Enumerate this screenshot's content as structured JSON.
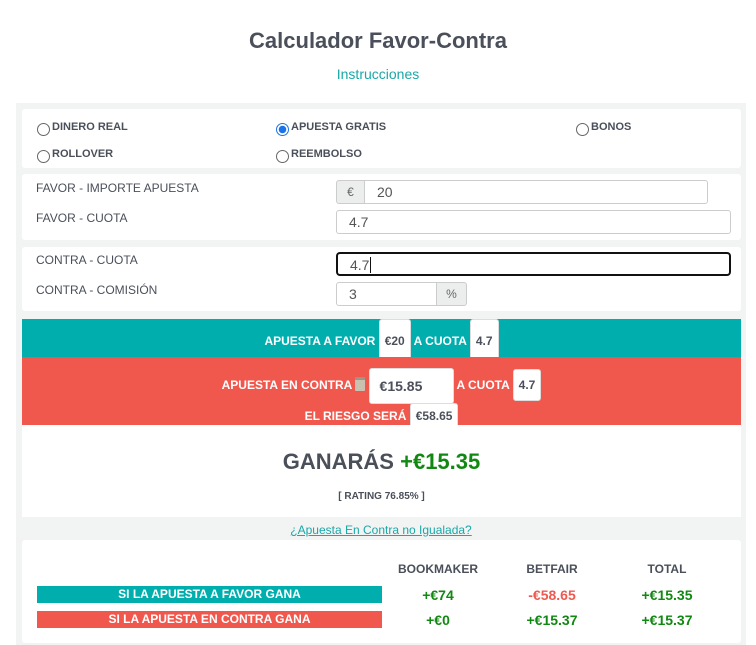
{
  "title": "Calculador Favor-Contra",
  "instructions_link": "Instrucciones",
  "bet_types": [
    {
      "label": "DINERO REAL",
      "checked": false
    },
    {
      "label": "APUESTA GRATIS",
      "checked": true
    },
    {
      "label": "BONOS",
      "checked": false
    },
    {
      "label": "ROLLOVER",
      "checked": false
    },
    {
      "label": "REEMBOLSO",
      "checked": false
    }
  ],
  "favor": {
    "amount_label": "FAVOR - IMPORTE APUESTA",
    "currency": "€",
    "amount": "20",
    "odds_label": "FAVOR - CUOTA",
    "odds": "4.7"
  },
  "contra": {
    "odds_label": "CONTRA - CUOTA",
    "odds": "4.7",
    "commission_label": "CONTRA - COMISIÓN",
    "commission": "3",
    "percent": "%"
  },
  "summary": {
    "favor_text": "APUESTA A FAVOR",
    "favor_amount": "€20",
    "a_cuota": "A CUOTA",
    "favor_odds": "4.7",
    "contra_text": "APUESTA EN CONTRA",
    "contra_amount": "€15.85",
    "contra_odds": "4.7",
    "risk_text": "EL RIESGO SERÁ",
    "risk": "€58.65",
    "win_text": "GANARÁS",
    "win": "+€15.35",
    "rating": "[ RATING 76.85% ]"
  },
  "unmatched_link": "¿Apuesta En Contra no Igualada?",
  "table": {
    "headers": [
      "BOOKMAKER",
      "BETFAIR",
      "TOTAL"
    ],
    "rows": [
      {
        "label": "SI LA APUESTA A FAVOR GANA",
        "values": [
          "+€74",
          "-€58.65",
          "+€15.35"
        ]
      },
      {
        "label": "SI LA APUESTA EN CONTRA GANA",
        "values": [
          "+€0",
          "+€15.37",
          "+€15.37"
        ]
      }
    ]
  },
  "colors": {
    "teal": "#00aeae",
    "red": "#f0584e",
    "green": "#118811"
  }
}
